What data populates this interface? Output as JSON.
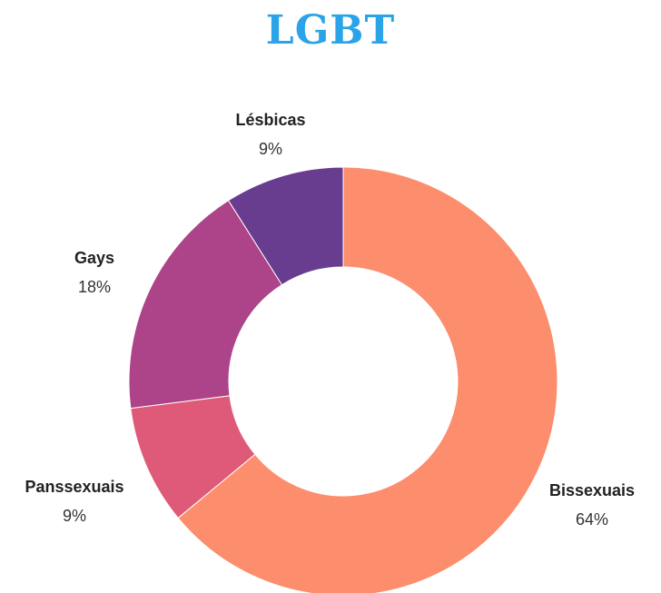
{
  "chart_data": {
    "type": "pie",
    "title": "LGBT",
    "donut": true,
    "legend": "none",
    "categories": [
      "Bissexuais",
      "Panssexuais",
      "Gays",
      "Lésbicas"
    ],
    "values": [
      64,
      9,
      18,
      9
    ],
    "value_labels": [
      "64%",
      "9%",
      "18%",
      "9%"
    ],
    "colors": [
      "#fc8d6d",
      "#de5a78",
      "#ad4388",
      "#683c8f"
    ]
  }
}
